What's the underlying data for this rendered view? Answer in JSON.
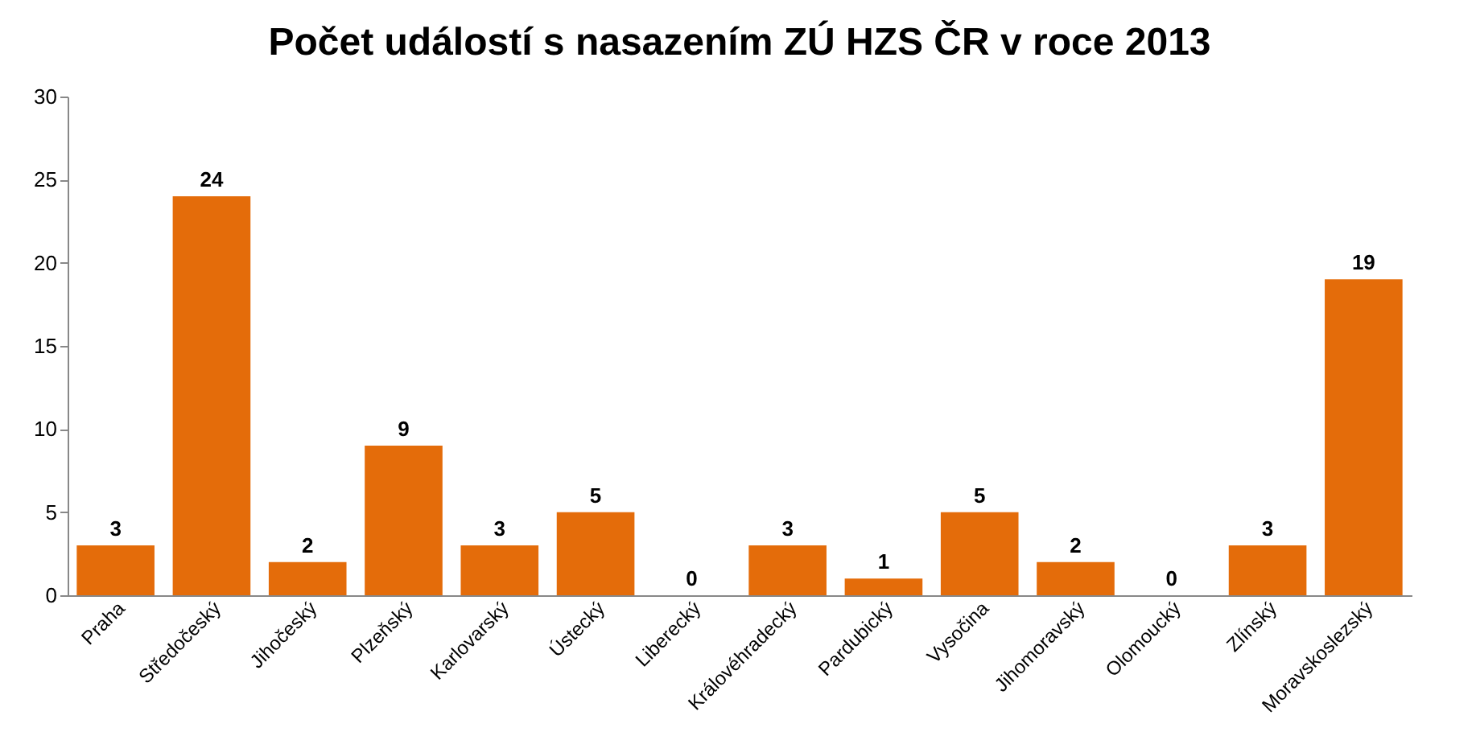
{
  "chart_data": {
    "type": "bar",
    "title": "Počet událostí s nasazením ZÚ HZS ČR v roce 2013",
    "categories": [
      "Praha",
      "Středočeský",
      "Jihočeský",
      "Plzeňský",
      "Karlovarský",
      "Ústecký",
      "Liberecký",
      "Královéhradecký",
      "Pardubický",
      "Vysočina",
      "Jihomoravský",
      "Olomoucký",
      "Zlínský",
      "Moravskoslezský"
    ],
    "values": [
      3,
      24,
      2,
      9,
      3,
      5,
      0,
      3,
      1,
      5,
      2,
      0,
      3,
      19
    ],
    "color": "#e46c0a",
    "ylim": [
      0,
      30
    ],
    "yticks": [
      0,
      5,
      10,
      15,
      20,
      25,
      30
    ],
    "grid": false,
    "data_labels": true
  }
}
